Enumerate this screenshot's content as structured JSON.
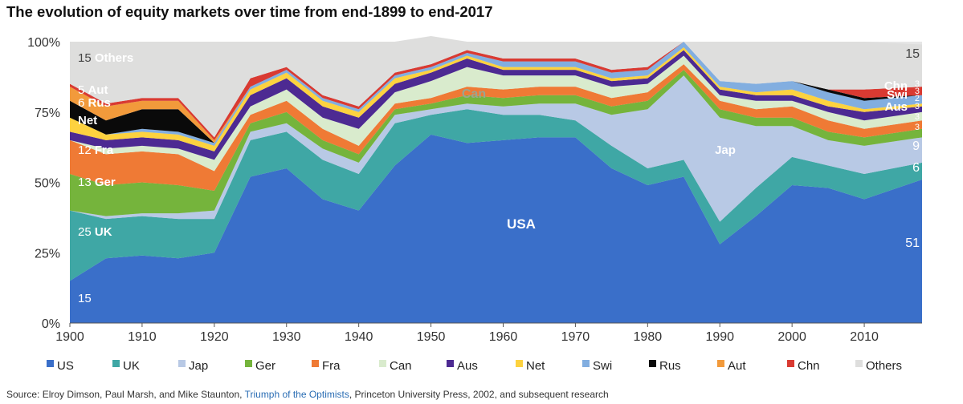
{
  "title": "The evolution of equity markets over time from end-1899 to end-2017",
  "source": {
    "prefix": "Source: Elroy Dimson, Paul Marsh, and Mike Staunton, ",
    "book": "Triumph of the Optimists",
    "suffix": ", Princeton University Press, 2002, and subsequent research"
  },
  "chart_data": {
    "type": "area",
    "stacked": true,
    "x": [
      1900,
      1905,
      1910,
      1915,
      1920,
      1925,
      1930,
      1935,
      1940,
      1945,
      1950,
      1955,
      1960,
      1965,
      1970,
      1975,
      1980,
      1985,
      1990,
      1995,
      2000,
      2005,
      2010,
      2017
    ],
    "xlim": [
      1900,
      2018
    ],
    "ylim": [
      0,
      100
    ],
    "xticks": [
      "1900",
      "1910",
      "1920",
      "1930",
      "1940",
      "1950",
      "1960",
      "1970",
      "1980",
      "1990",
      "2000",
      "2010"
    ],
    "yticks": [
      "0%",
      "25%",
      "50%",
      "75%",
      "100%"
    ],
    "grid": false,
    "legend_position": "bottom",
    "series": [
      {
        "name": "US",
        "color": "#3a6fc9",
        "values": [
          15,
          23,
          24,
          23,
          25,
          52,
          55,
          44,
          40,
          56,
          67,
          64,
          65,
          66,
          66,
          55,
          49,
          52,
          28,
          38,
          49,
          48,
          44,
          51
        ]
      },
      {
        "name": "UK",
        "color": "#3fa7a5",
        "values": [
          25,
          14,
          14,
          14,
          12,
          13,
          13,
          14,
          13,
          15,
          7,
          12,
          9,
          8,
          6,
          8,
          6,
          6,
          8,
          10,
          10,
          8,
          9,
          6
        ]
      },
      {
        "name": "Jap",
        "color": "#b8c9e5",
        "values": [
          0,
          1,
          1,
          2,
          3,
          3,
          3,
          4,
          4,
          3,
          2,
          2,
          3,
          4,
          6,
          11,
          21,
          30,
          37,
          22,
          11,
          9,
          10,
          9
        ]
      },
      {
        "name": "Ger",
        "color": "#75b43c",
        "values": [
          13,
          11,
          11,
          10,
          7,
          3,
          4,
          3,
          3,
          2,
          2,
          3,
          3,
          3,
          3,
          3,
          3,
          2,
          3,
          3,
          3,
          3,
          3,
          3
        ]
      },
      {
        "name": "Fra",
        "color": "#ef7a35",
        "values": [
          12,
          11,
          11,
          11,
          7,
          3,
          4,
          4,
          3,
          2,
          2,
          3,
          3,
          3,
          3,
          3,
          3,
          2,
          3,
          3,
          4,
          4,
          3,
          3
        ]
      },
      {
        "name": "Can",
        "color": "#d9ebcd",
        "values": [
          0,
          2,
          2,
          2,
          4,
          3,
          4,
          4,
          6,
          4,
          6,
          7,
          5,
          4,
          4,
          4,
          3,
          3,
          2,
          3,
          2,
          3,
          3,
          3
        ]
      },
      {
        "name": "Aus",
        "color": "#4d2a92",
        "values": [
          3,
          3,
          3,
          3,
          3,
          4,
          4,
          4,
          4,
          3,
          3,
          3,
          2,
          2,
          2,
          2,
          2,
          2,
          2,
          2,
          2,
          2,
          3,
          2
        ]
      },
      {
        "name": "Net",
        "color": "#fdd23f",
        "values": [
          5,
          2,
          2,
          2,
          2,
          2,
          2,
          2,
          2,
          2,
          1,
          1,
          1,
          1,
          1,
          1,
          1,
          1,
          1,
          1,
          2,
          2,
          1,
          1
        ]
      },
      {
        "name": "Swi",
        "color": "#82aee0",
        "values": [
          0,
          0,
          1,
          1,
          1,
          1,
          1,
          1,
          1,
          1,
          1,
          1,
          2,
          2,
          2,
          2,
          2,
          2,
          2,
          3,
          3,
          3,
          3,
          3
        ]
      },
      {
        "name": "Rus",
        "color": "#0a0a0a",
        "values": [
          6,
          5,
          7,
          8,
          0,
          0,
          0,
          0,
          0,
          0,
          0,
          0,
          0,
          0,
          0,
          0,
          0,
          0,
          0,
          0,
          0,
          1,
          1,
          0
        ]
      },
      {
        "name": "Aut",
        "color": "#f29a3b",
        "values": [
          5,
          5,
          3,
          3,
          1,
          0,
          0,
          0,
          0,
          0,
          0,
          0,
          0,
          0,
          0,
          0,
          0,
          0,
          0,
          0,
          0,
          0,
          0,
          0
        ]
      },
      {
        "name": "Chn",
        "color": "#d93a32",
        "values": [
          1,
          1,
          1,
          1,
          1,
          3,
          1,
          1,
          1,
          1,
          1,
          1,
          1,
          1,
          1,
          1,
          1,
          0,
          0,
          0,
          0,
          0,
          3,
          3
        ]
      },
      {
        "name": "Others",
        "color": "#dededd",
        "values": [
          15,
          22,
          20,
          20,
          34,
          13,
          9,
          19,
          23,
          11,
          10,
          3,
          6,
          6,
          6,
          10,
          9,
          0,
          14,
          15,
          14,
          17,
          17,
          15
        ]
      }
    ],
    "labels": {
      "start": [
        {
          "value": "15",
          "name": "Others"
        },
        {
          "value": "5",
          "name": "Aut"
        },
        {
          "value": "6",
          "name": "Rus"
        },
        {
          "value": "",
          "name": "Net"
        },
        {
          "value": "12",
          "name": "Fra"
        },
        {
          "value": "13",
          "name": "Ger"
        },
        {
          "value": "25",
          "name": "UK"
        },
        {
          "value": "15",
          "name": ""
        }
      ],
      "inline": [
        {
          "name": "USA"
        },
        {
          "name": "Jap"
        },
        {
          "name": "Can"
        }
      ],
      "end_values": [
        "15",
        "3",
        "3",
        "2",
        "3",
        "3",
        "3",
        "9",
        "6",
        "51"
      ],
      "end_names": [
        "Chn",
        "Swi",
        "Aus"
      ]
    }
  }
}
